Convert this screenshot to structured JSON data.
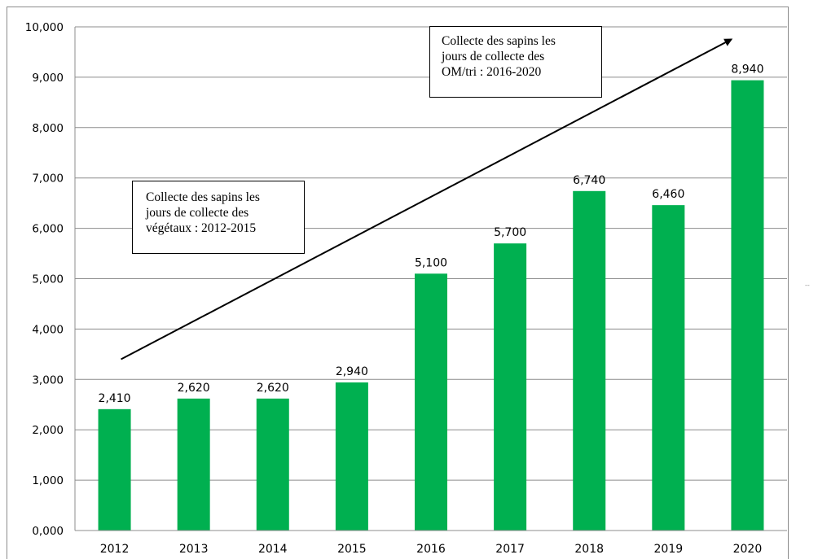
{
  "chart_data": {
    "type": "bar",
    "categories": [
      "2012",
      "2013",
      "2014",
      "2015",
      "2016",
      "2017",
      "2018",
      "2019",
      "2020"
    ],
    "values": [
      2410,
      2620,
      2620,
      2940,
      5100,
      5700,
      6740,
      6460,
      8940
    ],
    "value_labels": [
      "2,410",
      "2,620",
      "2,620",
      "2,940",
      "5,100",
      "5,700",
      "6,740",
      "6,460",
      "8,940"
    ],
    "ylim": [
      0,
      10000
    ],
    "y_ticks": [
      "0,000",
      "1,000",
      "2,000",
      "3,000",
      "4,000",
      "5,000",
      "6,000",
      "7,000",
      "8,000",
      "9,000",
      "10,000"
    ],
    "grid": true,
    "legend": "none",
    "bar_color": "#00b050",
    "annotations": [
      {
        "text": "Collecte des sapins les\njours de collecte des\nvégétaux : 2012-2015"
      },
      {
        "text": "Collecte des sapins les\njours de collecte des\nOM/tri : 2016-2020"
      }
    ],
    "trend_arrow": {
      "from": [
        "2012",
        3400
      ],
      "to": [
        "2020",
        9750
      ]
    }
  },
  "side_mark": "--"
}
